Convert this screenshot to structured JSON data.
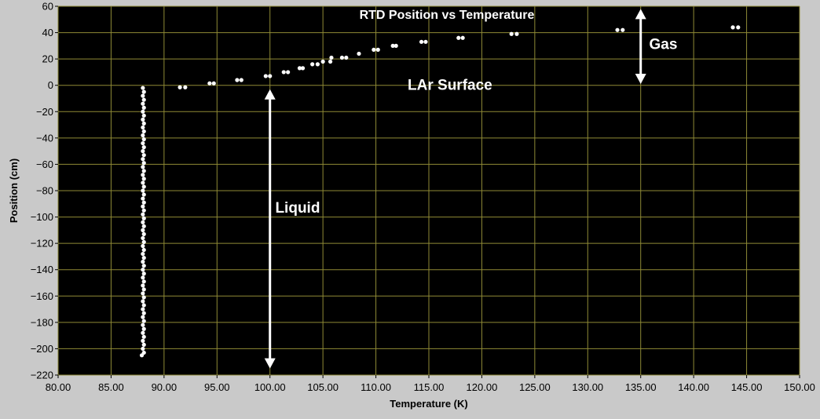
{
  "chart_data": {
    "type": "scatter",
    "title": "RTD Position vs Temperature",
    "xlabel": "Temperature (K)",
    "ylabel": "Position (cm)",
    "xlim": [
      80,
      150
    ],
    "ylim": [
      -220,
      60
    ],
    "xticks": [
      "80.00",
      "85.00",
      "90.00",
      "95.00",
      "100.00",
      "105.00",
      "110.00",
      "115.00",
      "120.00",
      "125.00",
      "130.00",
      "135.00",
      "140.00",
      "145.00",
      "150.00"
    ],
    "yticks": [
      "60",
      "40",
      "20",
      "0",
      "-20",
      "-40",
      "-60",
      "-80",
      "-100",
      "-120",
      "-140",
      "-160",
      "-180",
      "-200",
      "-220"
    ],
    "grid": true,
    "colors": {
      "plot_bg": "#000000",
      "grid": "#8f8a36",
      "points": "#ffffff",
      "annotation": "#ffffff",
      "frame": "#c9c9c9"
    },
    "annotations": [
      {
        "text": "LAr Surface",
        "x": 113,
        "y": 0
      },
      {
        "text": "Liquid",
        "x": 100.5,
        "y": -93
      },
      {
        "text": "Gas",
        "x": 135.8,
        "y": 31
      }
    ],
    "arrows": [
      {
        "name": "liquid-arrow",
        "x": 100,
        "y1": -215,
        "y2": -3
      },
      {
        "name": "gas-arrow",
        "x": 135,
        "y1": 1,
        "y2": 58
      }
    ],
    "series": [
      {
        "points": [
          [
            88.0,
            -2
          ],
          [
            88.1,
            -5
          ],
          [
            88.0,
            -8
          ],
          [
            88.1,
            -11
          ],
          [
            88.0,
            -14
          ],
          [
            88.1,
            -17
          ],
          [
            88.0,
            -20
          ],
          [
            88.1,
            -23
          ],
          [
            88.0,
            -26
          ],
          [
            88.1,
            -29
          ],
          [
            88.0,
            -32
          ],
          [
            88.1,
            -35
          ],
          [
            88.0,
            -38
          ],
          [
            88.1,
            -41
          ],
          [
            88.0,
            -44
          ],
          [
            88.1,
            -47
          ],
          [
            88.0,
            -50
          ],
          [
            88.1,
            -53
          ],
          [
            88.0,
            -56
          ],
          [
            88.1,
            -59
          ],
          [
            88.0,
            -62
          ],
          [
            88.1,
            -65
          ],
          [
            88.0,
            -68
          ],
          [
            88.1,
            -71
          ],
          [
            88.0,
            -74
          ],
          [
            88.1,
            -77
          ],
          [
            88.0,
            -80
          ],
          [
            88.1,
            -83
          ],
          [
            88.0,
            -86
          ],
          [
            88.1,
            -89
          ],
          [
            88.0,
            -92
          ],
          [
            88.1,
            -95
          ],
          [
            88.0,
            -98
          ],
          [
            88.1,
            -101
          ],
          [
            88.0,
            -104
          ],
          [
            88.1,
            -107
          ],
          [
            88.0,
            -110
          ],
          [
            88.1,
            -113
          ],
          [
            88.0,
            -116
          ],
          [
            88.1,
            -119
          ],
          [
            88.0,
            -122
          ],
          [
            88.1,
            -125
          ],
          [
            88.0,
            -128
          ],
          [
            88.1,
            -131
          ],
          [
            88.0,
            -134
          ],
          [
            88.1,
            -137
          ],
          [
            88.0,
            -140
          ],
          [
            88.1,
            -143
          ],
          [
            88.0,
            -146
          ],
          [
            88.1,
            -149
          ],
          [
            88.0,
            -152
          ],
          [
            88.1,
            -155
          ],
          [
            88.0,
            -158
          ],
          [
            88.1,
            -161
          ],
          [
            88.0,
            -164
          ],
          [
            88.1,
            -167
          ],
          [
            88.0,
            -170
          ],
          [
            88.1,
            -173
          ],
          [
            88.0,
            -176
          ],
          [
            88.1,
            -179
          ],
          [
            88.0,
            -182
          ],
          [
            88.1,
            -185
          ],
          [
            88.0,
            -188
          ],
          [
            88.1,
            -191
          ],
          [
            88.0,
            -194
          ],
          [
            88.1,
            -197
          ],
          [
            88.0,
            -200
          ],
          [
            88.1,
            -203
          ],
          [
            87.9,
            -205
          ],
          [
            91.5,
            -1.5
          ],
          [
            92.0,
            -1.5
          ],
          [
            94.3,
            1.5
          ],
          [
            94.7,
            1.5
          ],
          [
            96.9,
            4
          ],
          [
            97.3,
            4
          ],
          [
            99.6,
            7
          ],
          [
            100.0,
            7
          ],
          [
            101.3,
            10
          ],
          [
            101.7,
            10
          ],
          [
            102.8,
            13
          ],
          [
            103.1,
            13
          ],
          [
            104.0,
            16
          ],
          [
            104.5,
            16
          ],
          [
            105.0,
            18
          ],
          [
            105.7,
            18
          ],
          [
            105.8,
            21
          ],
          [
            106.8,
            21
          ],
          [
            107.2,
            21
          ],
          [
            108.4,
            24
          ],
          [
            109.8,
            27
          ],
          [
            110.2,
            27
          ],
          [
            111.6,
            30
          ],
          [
            111.9,
            30
          ],
          [
            114.3,
            33
          ],
          [
            114.7,
            33
          ],
          [
            117.8,
            36
          ],
          [
            118.2,
            36
          ],
          [
            122.8,
            39
          ],
          [
            123.3,
            39
          ],
          [
            132.8,
            42
          ],
          [
            133.3,
            42
          ],
          [
            143.7,
            44
          ],
          [
            144.2,
            44
          ]
        ]
      }
    ]
  }
}
